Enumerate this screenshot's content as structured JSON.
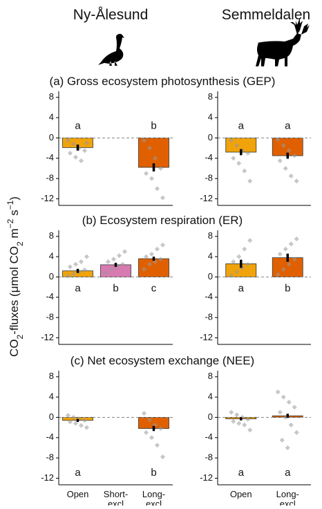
{
  "site_titles": [
    "Ny-Ålesund",
    "Semmeldalen"
  ],
  "ylabel_parts": [
    "CO",
    "2",
    "-fluxes (μmol CO",
    "2",
    " m",
    "−2",
    " s",
    "−1",
    ")"
  ],
  "chart_data": [
    {
      "type": "bar",
      "title": "(a) Gross ecosystem photosynthesis (GEP)",
      "values": [
        -1.9,
        null,
        -5.8
      ],
      "errors": [
        0.6,
        null,
        0.8
      ],
      "colors": [
        "#f0a30a",
        null,
        "#e06000"
      ],
      "letters": [
        "a",
        null,
        "b"
      ],
      "points": [
        [
          -0.5,
          -1.2,
          -2,
          -2.5,
          -3,
          -3.8,
          -4.5,
          -1
        ],
        null,
        [
          -0.5,
          -2,
          -4,
          -6,
          -7,
          -8,
          -10,
          -11.8
        ]
      ],
      "ylim": [
        -13.3,
        9.2
      ],
      "yticks": [
        -12,
        -8,
        -4,
        0,
        4,
        8
      ],
      "zero_line": "dashed"
    },
    {
      "type": "bar",
      "values": [
        -2.8,
        -3.5
      ],
      "errors": [
        0.6,
        0.6
      ],
      "colors": [
        "#f0a30a",
        "#e06000"
      ],
      "letters": [
        "a",
        "a"
      ],
      "points": [
        [
          -0.5,
          -1.5,
          -2.5,
          -3,
          -4,
          -5,
          -6.5,
          -8.5
        ],
        [
          -0.3,
          -1.5,
          -2.5,
          -3.5,
          -4.5,
          -6,
          -7.5,
          -8.5
        ]
      ],
      "ylim": [
        -13.3,
        9.2
      ],
      "yticks": [
        -12,
        -8,
        -4,
        0,
        4,
        8
      ],
      "zero_line": "dashed"
    },
    {
      "type": "bar",
      "title": "(b) Ecosystem respiration (ER)",
      "values": [
        1.2,
        2.4,
        3.6
      ],
      "errors": [
        0.4,
        0.4,
        0.4
      ],
      "colors": [
        "#f0a30a",
        "#d67ab1",
        "#e06000"
      ],
      "letters": [
        "a",
        "b",
        "c"
      ],
      "points": [
        [
          0.2,
          0.6,
          1,
          1.4,
          2,
          2.5,
          3,
          4
        ],
        [
          0.8,
          1.5,
          2,
          2.5,
          3,
          3.5,
          4.2,
          5
        ],
        [
          1.5,
          2.5,
          3,
          3.5,
          4,
          4.5,
          5.5,
          6.3
        ]
      ],
      "ylim": [
        -13.3,
        9.2
      ],
      "yticks": [
        -12,
        -8,
        -4,
        0,
        4,
        8
      ],
      "zero_line": "dashed"
    },
    {
      "type": "bar",
      "values": [
        2.6,
        3.8
      ],
      "errors": [
        0.8,
        0.8
      ],
      "colors": [
        "#f0a30a",
        "#e06000"
      ],
      "letters": [
        "a",
        "b"
      ],
      "points": [
        [
          0.3,
          1,
          1.8,
          2.5,
          3,
          4,
          5.5,
          7.2
        ],
        [
          0.5,
          1.5,
          2.5,
          3.5,
          4.5,
          5.5,
          6.5,
          7.5
        ]
      ],
      "ylim": [
        -13.3,
        9.2
      ],
      "yticks": [
        -12,
        -8,
        -4,
        0,
        4,
        8
      ],
      "zero_line": "dashed"
    },
    {
      "type": "bar",
      "title": "(c) Net ecosystem exchange (NEE)",
      "categories": [
        [
          "Open"
        ],
        [
          "Short-",
          "excl"
        ],
        [
          "Long-",
          "excl"
        ]
      ],
      "values": [
        -0.6,
        null,
        -2.2
      ],
      "errors": [
        0.3,
        null,
        0.5
      ],
      "colors": [
        "#f0a30a",
        null,
        "#e06000"
      ],
      "letters": [
        "a",
        null,
        "b"
      ],
      "points": [
        [
          0.4,
          0,
          -0.3,
          -0.6,
          -0.9,
          -1.2,
          -1.6,
          -2
        ],
        null,
        [
          0.8,
          -0.5,
          -1.5,
          -2.2,
          -3,
          -4,
          -5.5,
          -7.8
        ]
      ],
      "ylim": [
        -13.3,
        9.2
      ],
      "yticks": [
        -12,
        -8,
        -4,
        0,
        4,
        8
      ],
      "zero_line": "dashed"
    },
    {
      "type": "bar",
      "categories": [
        [
          "Open"
        ],
        [
          "Long-",
          "excl"
        ]
      ],
      "values": [
        -0.3,
        0.3
      ],
      "errors": [
        0.3,
        0.4
      ],
      "colors": [
        "#f0a30a",
        "#e06000"
      ],
      "letters": [
        "a",
        "a"
      ],
      "points": [
        [
          1,
          0.5,
          0,
          -0.4,
          -0.8,
          -1.2,
          -1.5,
          -2.5
        ],
        [
          5,
          4,
          3,
          2,
          1,
          0,
          -1.5,
          -3,
          -4.5,
          -6
        ]
      ],
      "ylim": [
        -13.3,
        9.2
      ],
      "yticks": [
        -12,
        -8,
        -4,
        0,
        4,
        8
      ],
      "zero_line": "dashed"
    }
  ]
}
